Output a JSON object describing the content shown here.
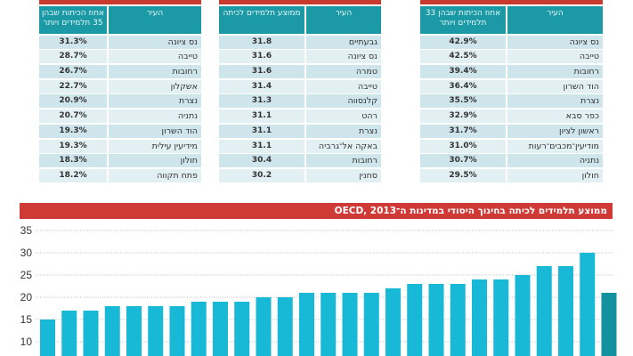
{
  "tables": [
    {
      "header": {
        "city": "העיר",
        "value": "אחוז הכיתות שבהן 35 תלמידים ויותר"
      },
      "rows": [
        [
          "נס ציונה",
          "31.3%"
        ],
        [
          "טייבה",
          "28.7%"
        ],
        [
          "רחובות",
          "26.7%"
        ],
        [
          "אשקלון",
          "22.7%"
        ],
        [
          "נצרת",
          "20.9%"
        ],
        [
          "נתניה",
          "20.7%"
        ],
        [
          "הוד השרון",
          "19.3%"
        ],
        [
          "מידיעין עילית",
          "19.3%"
        ],
        [
          "חולון",
          "18.3%"
        ],
        [
          "פתח תקווה",
          "18.2%"
        ]
      ]
    },
    {
      "header": {
        "city": "העיר",
        "value": "ממוצע תלמידים לכיתה"
      },
      "rows": [
        [
          "גבעתיים",
          "31.8"
        ],
        [
          "נס ציונה",
          "31.6"
        ],
        [
          "טמרה",
          "31.6"
        ],
        [
          "טייבה",
          "31.4"
        ],
        [
          "קלנסווה",
          "31.3"
        ],
        [
          "רהט",
          "31.1"
        ],
        [
          "נצרת",
          "31.1"
        ],
        [
          "באקה אל־גרביה",
          "31.1"
        ],
        [
          "רחובות",
          "30.4"
        ],
        [
          "סחנין",
          "30.2"
        ]
      ]
    },
    {
      "header": {
        "city": "העיר",
        "value": "אחוז הכיתות שבהן 33 תלמידים ויותר"
      },
      "rows": [
        [
          "נס ציונה",
          "42.9%"
        ],
        [
          "טייבה",
          "42.5%"
        ],
        [
          "רחובות",
          "39.4%"
        ],
        [
          "הוד השרון",
          "36.4%"
        ],
        [
          "נצרת",
          "35.5%"
        ],
        [
          "כפר סבא",
          "32.9%"
        ],
        [
          "ראשון לציון",
          "31.7%"
        ],
        [
          "מודיעין־מכבים־רעות",
          "31.0%"
        ],
        [
          "נתניה",
          "30.7%"
        ],
        [
          "חולון",
          "29.5%"
        ]
      ]
    }
  ],
  "chart_data": {
    "type": "bar",
    "title": "ממוצע תלמידים לכיתה בחינוך היסודי במדינות ה־OECD, 2013",
    "values": [
      15,
      17,
      17,
      18,
      18,
      18,
      18,
      19,
      19,
      19,
      20,
      20,
      21,
      21,
      21,
      21,
      22,
      23,
      23,
      23,
      24,
      24,
      25,
      27,
      27,
      30,
      21
    ],
    "highlight_index": 26,
    "yticks": [
      10,
      15,
      20,
      25,
      30,
      35
    ],
    "ylim": [
      0,
      35
    ],
    "grid": true,
    "colors": {
      "bar": "#17b9d6",
      "highlight": "#13919e",
      "title_bg": "#cf3a36",
      "header": "#1b9aa6"
    }
  }
}
